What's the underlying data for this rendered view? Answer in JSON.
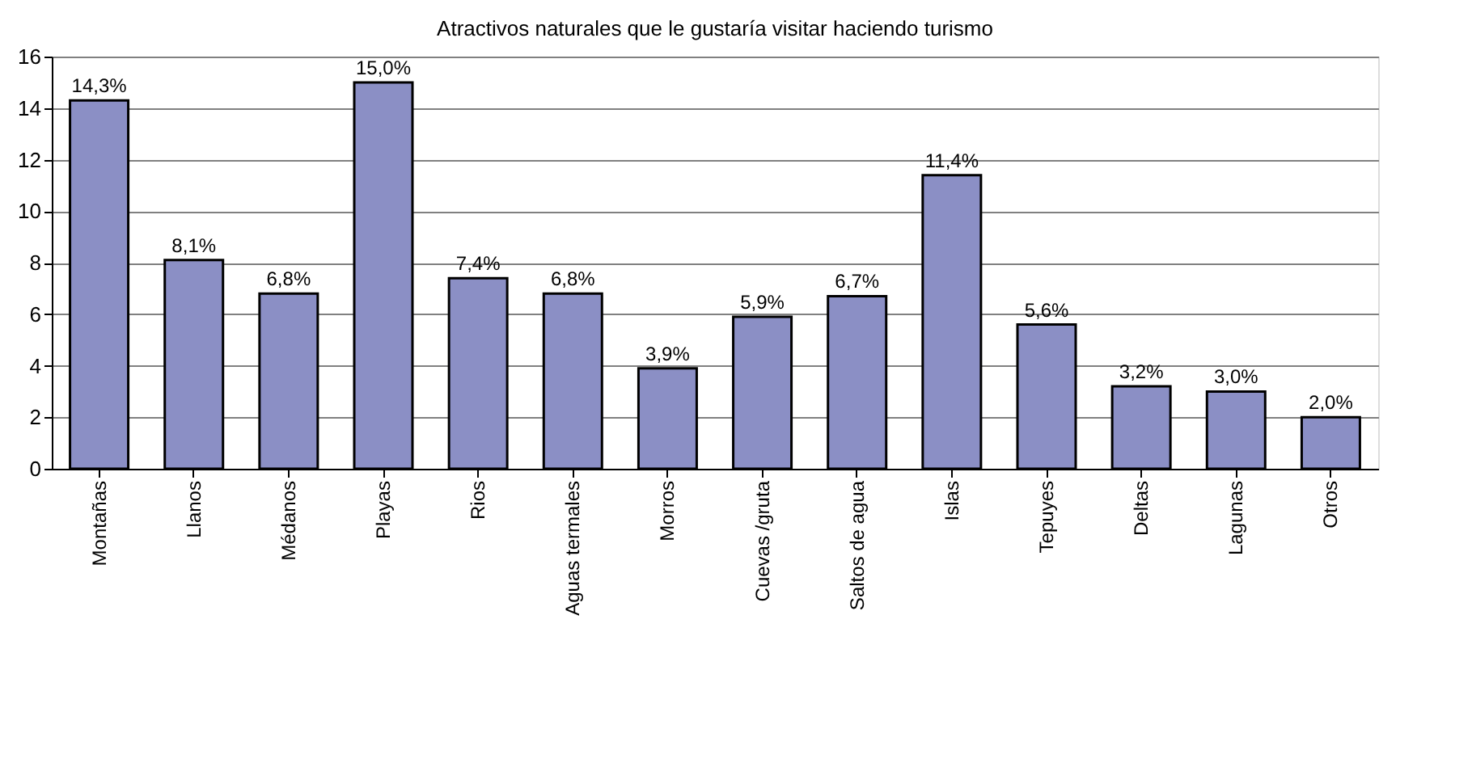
{
  "chart_data": {
    "type": "bar",
    "title": "Atractivos naturales que le gustaría visitar haciendo turismo",
    "categories": [
      "Montañas",
      "Llanos",
      "Médanos",
      "Playas",
      "Rios",
      "Aguas termales",
      "Morros",
      "Cuevas /gruta",
      "Saltos de agua",
      "Islas",
      "Tepuyes",
      "Deltas",
      "Lagunas",
      "Otros"
    ],
    "values": [
      14.3,
      8.1,
      6.8,
      15.0,
      7.4,
      6.8,
      3.9,
      5.9,
      6.7,
      11.4,
      5.6,
      3.2,
      3.0,
      2.0
    ],
    "value_labels": [
      "14,3%",
      "8,1%",
      "6,8%",
      "15,0%",
      "7,4%",
      "6,8%",
      "3,9%",
      "5,9%",
      "6,7%",
      "11,4%",
      "5,6%",
      "3,2%",
      "3,0%",
      "2,0%"
    ],
    "color": "#8b8fc5",
    "ylim": [
      0,
      16
    ],
    "yticks": [
      0,
      2,
      4,
      6,
      8,
      10,
      12,
      14,
      16
    ],
    "grid": "y"
  }
}
